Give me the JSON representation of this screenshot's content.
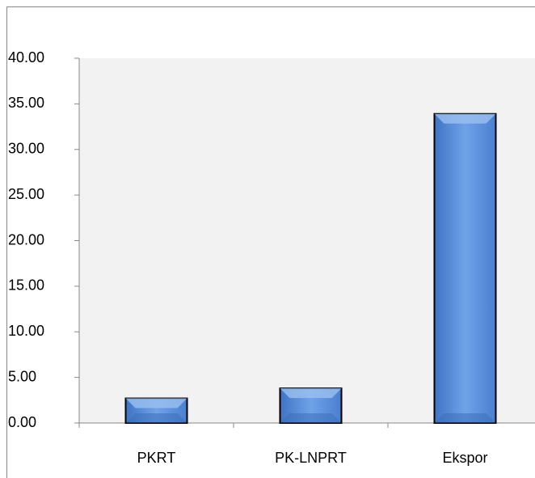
{
  "chart_data": {
    "type": "bar",
    "categories": [
      "PKRT",
      "PK-LNPRT",
      "Ekspor"
    ],
    "values": [
      2.7,
      3.8,
      33.9
    ],
    "color": "#5b8fd6",
    "ylim": [
      0,
      40
    ],
    "yticks": [
      {
        "value": 0,
        "label": "0.00"
      },
      {
        "value": 5,
        "label": "5.00"
      },
      {
        "value": 10,
        "label": "10.00"
      },
      {
        "value": 15,
        "label": "15.00"
      },
      {
        "value": 20,
        "label": "20.00"
      },
      {
        "value": 25,
        "label": "25.00"
      },
      {
        "value": 30,
        "label": "30.00"
      },
      {
        "value": 35,
        "label": "35.00"
      },
      {
        "value": 40,
        "label": "40.00"
      }
    ]
  }
}
